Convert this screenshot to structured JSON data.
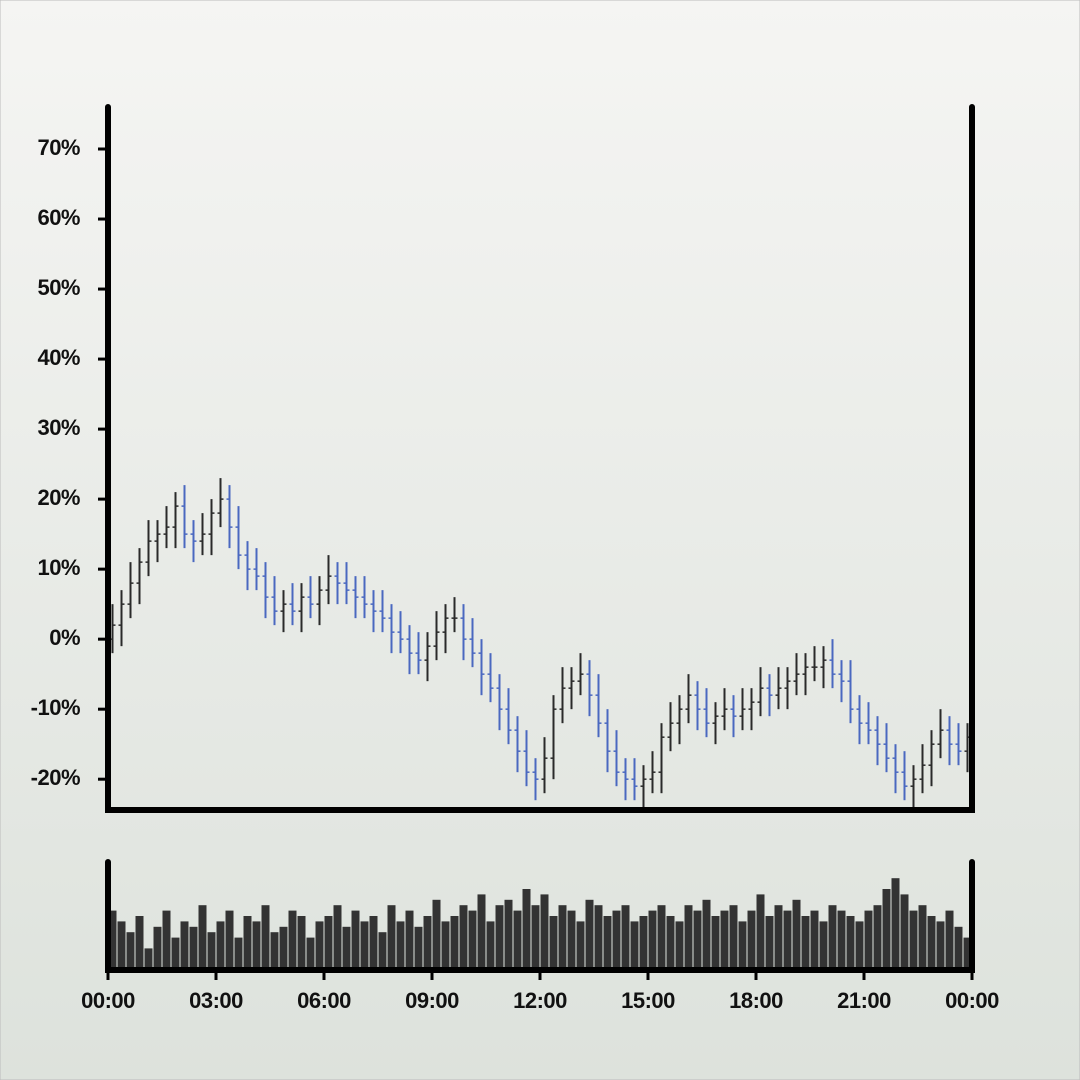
{
  "chart_data": {
    "type": "ohlc",
    "x": [
      0,
      0.25,
      0.5,
      0.75,
      1,
      1.25,
      1.5,
      1.75,
      2,
      2.25,
      2.5,
      2.75,
      3,
      3.25,
      3.5,
      3.75,
      4,
      4.25,
      4.5,
      4.75,
      5,
      5.25,
      5.5,
      5.75,
      6,
      6.25,
      6.5,
      6.75,
      7,
      7.25,
      7.5,
      7.75,
      8,
      8.25,
      8.5,
      8.75,
      9,
      9.25,
      9.5,
      9.75,
      10,
      10.25,
      10.5,
      10.75,
      11,
      11.25,
      11.5,
      11.75,
      12,
      12.25,
      12.5,
      12.75,
      13,
      13.25,
      13.5,
      13.75,
      14,
      14.25,
      14.5,
      14.75,
      15,
      15.25,
      15.5,
      15.75,
      16,
      16.25,
      16.5,
      16.75,
      17,
      17.25,
      17.5,
      17.75,
      18,
      18.25,
      18.5,
      18.75,
      19,
      19.25,
      19.5,
      19.75,
      20,
      20.25,
      20.5,
      20.75,
      21,
      21.25,
      21.5,
      21.75,
      22,
      22.25,
      22.5,
      22.75,
      23,
      23.25,
      23.5,
      23.75
    ],
    "open": [
      0,
      2,
      5,
      8,
      11,
      14,
      15,
      16,
      19,
      15,
      14,
      15,
      18,
      20,
      16,
      12,
      10,
      9,
      6,
      4,
      5,
      4,
      6,
      5,
      7,
      9,
      8,
      7,
      6,
      5,
      4,
      3,
      1,
      0,
      -2,
      -3,
      -1,
      1,
      3,
      3,
      0,
      -2,
      -5,
      -7,
      -10,
      -13,
      -16,
      -19,
      -20,
      -17,
      -10,
      -7,
      -6,
      -5,
      -8,
      -12,
      -16,
      -19,
      -20,
      -21,
      -20,
      -19,
      -14,
      -12,
      -10,
      -8,
      -10,
      -12,
      -11,
      -10,
      -11,
      -10,
      -9,
      -7,
      -8,
      -7,
      -6,
      -5,
      -4,
      -4,
      -3,
      -5,
      -6,
      -10,
      -12,
      -13,
      -15,
      -17,
      -19,
      -21,
      -20,
      -18,
      -15,
      -13,
      -15,
      -16
    ],
    "high": [
      5,
      7,
      11,
      13,
      17,
      17,
      19,
      21,
      22,
      17,
      18,
      20,
      23,
      22,
      19,
      14,
      13,
      11,
      9,
      7,
      8,
      8,
      9,
      9,
      12,
      11,
      11,
      9,
      9,
      7,
      7,
      5,
      4,
      2,
      1,
      1,
      4,
      5,
      6,
      5,
      3,
      0,
      -2,
      -5,
      -7,
      -11,
      -13,
      -17,
      -14,
      -8,
      -4,
      -4,
      -2,
      -3,
      -5,
      -10,
      -13,
      -17,
      -17,
      -18,
      -16,
      -12,
      -9,
      -8,
      -5,
      -6,
      -7,
      -9,
      -7,
      -8,
      -7,
      -7,
      -4,
      -5,
      -4,
      -4,
      -2,
      -2,
      -1,
      -1,
      0,
      -3,
      -3,
      -8,
      -9,
      -11,
      -12,
      -15,
      -16,
      -18,
      -15,
      -13,
      -10,
      -11,
      -12,
      -12
    ],
    "low": [
      -2,
      -1,
      3,
      5,
      9,
      11,
      13,
      13,
      13,
      11,
      12,
      12,
      16,
      13,
      10,
      7,
      7,
      3,
      2,
      1,
      2,
      1,
      3,
      2,
      5,
      5,
      5,
      3,
      3,
      1,
      1,
      -2,
      -2,
      -5,
      -5,
      -6,
      -3,
      -2,
      1,
      -3,
      -4,
      -8,
      -9,
      -13,
      -15,
      -19,
      -21,
      -23,
      -22,
      -20,
      -12,
      -10,
      -8,
      -11,
      -14,
      -19,
      -21,
      -23,
      -23,
      -24,
      -22,
      -22,
      -16,
      -15,
      -12,
      -13,
      -14,
      -15,
      -13,
      -14,
      -13,
      -13,
      -11,
      -11,
      -10,
      -10,
      -8,
      -8,
      -6,
      -7,
      -7,
      -9,
      -12,
      -15,
      -15,
      -18,
      -19,
      -22,
      -23,
      -24,
      -22,
      -21,
      -17,
      -18,
      -18,
      -19
    ],
    "close": [
      2,
      5,
      8,
      11,
      14,
      15,
      16,
      19,
      15,
      14,
      15,
      18,
      20,
      16,
      12,
      10,
      9,
      6,
      4,
      5,
      4,
      6,
      5,
      7,
      9,
      8,
      7,
      6,
      5,
      4,
      3,
      1,
      0,
      -2,
      -3,
      -1,
      1,
      3,
      3,
      0,
      -2,
      -5,
      -7,
      -10,
      -13,
      -16,
      -19,
      -20,
      -17,
      -10,
      -7,
      -6,
      -5,
      -8,
      -12,
      -16,
      -19,
      -20,
      -21,
      -20,
      -19,
      -14,
      -12,
      -10,
      -8,
      -10,
      -12,
      -11,
      -10,
      -11,
      -10,
      -9,
      -7,
      -8,
      -7,
      -6,
      -5,
      -4,
      -4,
      -3,
      -5,
      -6,
      -10,
      -12,
      -13,
      -15,
      -17,
      -19,
      -21,
      -20,
      -18,
      -15,
      -13,
      -15,
      -16,
      -14
    ],
    "volume": [
      55,
      45,
      35,
      50,
      20,
      40,
      55,
      30,
      45,
      40,
      60,
      35,
      45,
      55,
      30,
      50,
      45,
      60,
      35,
      40,
      55,
      50,
      30,
      45,
      50,
      60,
      40,
      55,
      45,
      50,
      35,
      60,
      45,
      55,
      40,
      50,
      65,
      45,
      50,
      60,
      55,
      70,
      45,
      60,
      65,
      55,
      75,
      60,
      70,
      50,
      60,
      55,
      45,
      65,
      60,
      50,
      55,
      60,
      45,
      50,
      55,
      60,
      50,
      45,
      60,
      55,
      65,
      50,
      55,
      60,
      45,
      55,
      70,
      50,
      60,
      55,
      65,
      50,
      55,
      45,
      60,
      55,
      50,
      45,
      55,
      60,
      75,
      85,
      70,
      55,
      60,
      50,
      45,
      55,
      40,
      30
    ],
    "up_color": "#2a2a2a",
    "down_color": "#4a68c0",
    "volume_color": "#333333",
    "xlim": [
      0,
      24
    ],
    "xticks": [
      {
        "value": 0,
        "label": "00:00"
      },
      {
        "value": 3,
        "label": "03:00"
      },
      {
        "value": 6,
        "label": "06:00"
      },
      {
        "value": 9,
        "label": "09:00"
      },
      {
        "value": 12,
        "label": "12:00"
      },
      {
        "value": 15,
        "label": "15:00"
      },
      {
        "value": 18,
        "label": "18:00"
      },
      {
        "value": 21,
        "label": "21:00"
      },
      {
        "value": 24,
        "label": "00:00"
      }
    ],
    "ylim": [
      -24.4,
      76
    ],
    "yticks": [
      {
        "value": -20,
        "label": "-20%"
      },
      {
        "value": -10,
        "label": "-10%"
      },
      {
        "value": 0,
        "label": "0%"
      },
      {
        "value": 10,
        "label": "10%"
      },
      {
        "value": 20,
        "label": "20%"
      },
      {
        "value": 30,
        "label": "30%"
      },
      {
        "value": 40,
        "label": "40%"
      },
      {
        "value": 50,
        "label": "50%"
      },
      {
        "value": 60,
        "label": "60%"
      },
      {
        "value": 70,
        "label": "70%"
      }
    ],
    "volume_ylim": [
      0,
      100
    ]
  }
}
